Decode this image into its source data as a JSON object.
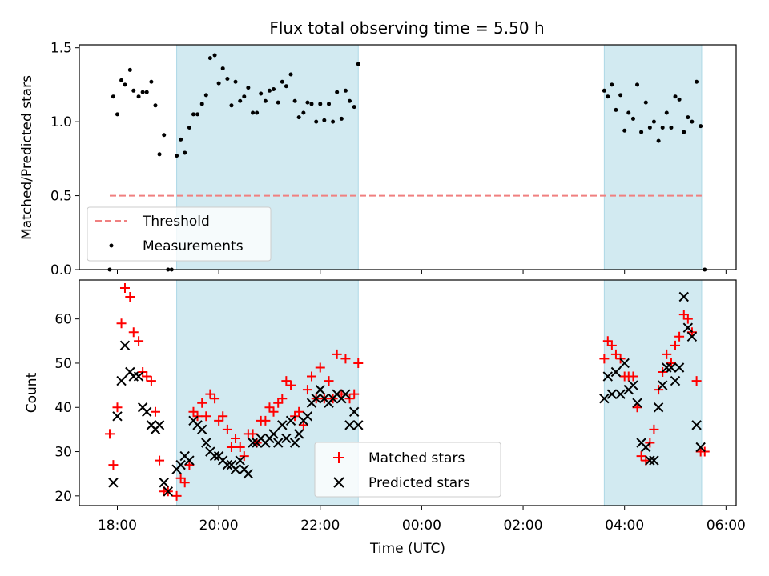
{
  "title": "Flux total observing time = 5.50 h",
  "chart_data": [
    {
      "type": "scatter",
      "panel": "top",
      "ylabel": "Matched/Predicted stars",
      "xlabel": "",
      "x_unit": "hours since 18:00 UTC",
      "xlim": [
        -0.75,
        12.2
      ],
      "ylim": [
        0.0,
        1.52
      ],
      "yticks": [
        0.0,
        0.5,
        1.0,
        1.5
      ],
      "ytick_labels": [
        "0.0",
        "0.5",
        "1.0",
        "1.5"
      ],
      "shaded_intervals": [
        [
          1.17,
          4.75
        ],
        [
          9.6,
          11.52
        ]
      ],
      "threshold": {
        "name": "Threshold",
        "value": 0.5,
        "x_range": [
          -0.15,
          11.52
        ],
        "color": "#f08080"
      },
      "series": [
        {
          "name": "Measurements",
          "color": "#000000",
          "points": [
            [
              -0.15,
              0.0
            ],
            [
              -0.08,
              1.17
            ],
            [
              0.0,
              1.05
            ],
            [
              0.08,
              1.28
            ],
            [
              0.15,
              1.25
            ],
            [
              0.25,
              1.35
            ],
            [
              0.32,
              1.21
            ],
            [
              0.42,
              1.17
            ],
            [
              0.5,
              1.2
            ],
            [
              0.58,
              1.2
            ],
            [
              0.67,
              1.27
            ],
            [
              0.75,
              1.11
            ],
            [
              0.83,
              0.78
            ],
            [
              0.92,
              0.91
            ],
            [
              1.0,
              0.0
            ],
            [
              1.07,
              0.0
            ],
            [
              1.17,
              0.77
            ],
            [
              1.25,
              0.88
            ],
            [
              1.33,
              0.79
            ],
            [
              1.42,
              0.96
            ],
            [
              1.5,
              1.05
            ],
            [
              1.58,
              1.05
            ],
            [
              1.67,
              1.12
            ],
            [
              1.75,
              1.18
            ],
            [
              1.83,
              1.43
            ],
            [
              1.92,
              1.45
            ],
            [
              2.0,
              1.26
            ],
            [
              2.08,
              1.36
            ],
            [
              2.17,
              1.29
            ],
            [
              2.25,
              1.11
            ],
            [
              2.33,
              1.27
            ],
            [
              2.42,
              1.14
            ],
            [
              2.5,
              1.17
            ],
            [
              2.58,
              1.23
            ],
            [
              2.67,
              1.06
            ],
            [
              2.75,
              1.06
            ],
            [
              2.83,
              1.19
            ],
            [
              2.92,
              1.14
            ],
            [
              3.0,
              1.21
            ],
            [
              3.08,
              1.22
            ],
            [
              3.17,
              1.13
            ],
            [
              3.25,
              1.27
            ],
            [
              3.33,
              1.24
            ],
            [
              3.42,
              1.32
            ],
            [
              3.5,
              1.14
            ],
            [
              3.58,
              1.03
            ],
            [
              3.67,
              1.06
            ],
            [
              3.75,
              1.13
            ],
            [
              3.83,
              1.12
            ],
            [
              3.92,
              1.0
            ],
            [
              4.0,
              1.12
            ],
            [
              4.08,
              1.01
            ],
            [
              4.17,
              1.12
            ],
            [
              4.25,
              1.0
            ],
            [
              4.33,
              1.2
            ],
            [
              4.42,
              1.02
            ],
            [
              4.5,
              1.21
            ],
            [
              4.58,
              1.14
            ],
            [
              4.67,
              1.1
            ],
            [
              4.75,
              1.39
            ],
            [
              9.6,
              1.21
            ],
            [
              9.67,
              1.17
            ],
            [
              9.75,
              1.25
            ],
            [
              9.83,
              1.08
            ],
            [
              9.92,
              1.18
            ],
            [
              10.0,
              0.94
            ],
            [
              10.08,
              1.06
            ],
            [
              10.17,
              1.02
            ],
            [
              10.25,
              1.25
            ],
            [
              10.33,
              0.93
            ],
            [
              10.42,
              1.13
            ],
            [
              10.5,
              0.96
            ],
            [
              10.58,
              1.0
            ],
            [
              10.67,
              0.87
            ],
            [
              10.75,
              0.96
            ],
            [
              10.83,
              1.06
            ],
            [
              10.92,
              0.96
            ],
            [
              11.0,
              1.17
            ],
            [
              11.08,
              1.15
            ],
            [
              11.17,
              0.93
            ],
            [
              11.25,
              1.03
            ],
            [
              11.33,
              1.0
            ],
            [
              11.42,
              1.27
            ],
            [
              11.5,
              0.97
            ],
            [
              11.58,
              0.0
            ]
          ]
        }
      ],
      "legend": {
        "placement": "lower-left",
        "entries": [
          "Threshold",
          "Measurements"
        ]
      }
    },
    {
      "type": "scatter",
      "panel": "bottom",
      "ylabel": "Count",
      "xlabel": "Time (UTC)",
      "x_unit": "hours since 18:00 UTC",
      "xlim": [
        -0.75,
        12.2
      ],
      "ylim": [
        17.8,
        68.8
      ],
      "yticks": [
        20,
        30,
        40,
        50,
        60
      ],
      "ytick_labels": [
        "20",
        "30",
        "40",
        "50",
        "60"
      ],
      "xticks": [
        0,
        2,
        4,
        6,
        8,
        10,
        12
      ],
      "xtick_labels": [
        "18:00",
        "20:00",
        "22:00",
        "00:00",
        "02:00",
        "04:00",
        "06:00"
      ],
      "shaded_intervals": [
        [
          1.17,
          4.75
        ],
        [
          9.6,
          11.52
        ]
      ],
      "series": [
        {
          "name": "Matched stars",
          "marker": "plus",
          "color": "#ff0000",
          "points": [
            [
              -0.15,
              34
            ],
            [
              -0.08,
              27
            ],
            [
              0.0,
              40
            ],
            [
              0.08,
              59
            ],
            [
              0.15,
              67
            ],
            [
              0.25,
              65
            ],
            [
              0.32,
              57
            ],
            [
              0.42,
              55
            ],
            [
              0.5,
              48
            ],
            [
              0.58,
              47
            ],
            [
              0.67,
              46
            ],
            [
              0.75,
              39
            ],
            [
              0.83,
              28
            ],
            [
              0.92,
              21
            ],
            [
              1.0,
              21
            ],
            [
              1.17,
              20
            ],
            [
              1.25,
              24
            ],
            [
              1.33,
              23
            ],
            [
              1.42,
              27
            ],
            [
              1.5,
              39
            ],
            [
              1.58,
              38
            ],
            [
              1.67,
              41
            ],
            [
              1.75,
              38
            ],
            [
              1.83,
              43
            ],
            [
              1.92,
              42
            ],
            [
              2.0,
              37
            ],
            [
              2.08,
              38
            ],
            [
              2.17,
              35
            ],
            [
              2.25,
              31
            ],
            [
              2.33,
              33
            ],
            [
              2.42,
              31
            ],
            [
              2.5,
              29
            ],
            [
              2.58,
              34
            ],
            [
              2.67,
              34
            ],
            [
              2.75,
              32
            ],
            [
              2.83,
              37
            ],
            [
              2.92,
              37
            ],
            [
              3.0,
              40
            ],
            [
              3.08,
              39
            ],
            [
              3.17,
              41
            ],
            [
              3.25,
              42
            ],
            [
              3.33,
              46
            ],
            [
              3.42,
              45
            ],
            [
              3.5,
              38
            ],
            [
              3.58,
              39
            ],
            [
              3.67,
              36
            ],
            [
              3.75,
              44
            ],
            [
              3.83,
              47
            ],
            [
              3.92,
              42
            ],
            [
              4.0,
              49
            ],
            [
              4.08,
              42
            ],
            [
              4.17,
              46
            ],
            [
              4.25,
              42
            ],
            [
              4.33,
              52
            ],
            [
              4.42,
              43
            ],
            [
              4.5,
              51
            ],
            [
              4.58,
              42
            ],
            [
              4.67,
              43
            ],
            [
              4.75,
              50
            ],
            [
              9.6,
              51
            ],
            [
              9.67,
              55
            ],
            [
              9.75,
              54
            ],
            [
              9.83,
              52
            ],
            [
              9.92,
              51
            ],
            [
              10.0,
              47
            ],
            [
              10.08,
              47
            ],
            [
              10.17,
              47
            ],
            [
              10.25,
              40
            ],
            [
              10.33,
              29
            ],
            [
              10.42,
              28
            ],
            [
              10.5,
              32
            ],
            [
              10.58,
              35
            ],
            [
              10.67,
              44
            ],
            [
              10.75,
              48
            ],
            [
              10.83,
              52
            ],
            [
              10.92,
              50
            ],
            [
              11.0,
              54
            ],
            [
              11.08,
              56
            ],
            [
              11.17,
              61
            ],
            [
              11.25,
              60
            ],
            [
              11.33,
              57
            ],
            [
              11.42,
              46
            ],
            [
              11.5,
              30
            ],
            [
              11.58,
              30
            ]
          ]
        },
        {
          "name": "Predicted stars",
          "marker": "x",
          "color": "#000000",
          "points": [
            [
              -0.08,
              23
            ],
            [
              0.0,
              38
            ],
            [
              0.08,
              46
            ],
            [
              0.15,
              54
            ],
            [
              0.25,
              48
            ],
            [
              0.32,
              47
            ],
            [
              0.42,
              47
            ],
            [
              0.5,
              40
            ],
            [
              0.58,
              39
            ],
            [
              0.67,
              36
            ],
            [
              0.75,
              35
            ],
            [
              0.83,
              36
            ],
            [
              0.92,
              23
            ],
            [
              1.0,
              21
            ],
            [
              1.17,
              26
            ],
            [
              1.25,
              27
            ],
            [
              1.33,
              29
            ],
            [
              1.42,
              28
            ],
            [
              1.5,
              37
            ],
            [
              1.58,
              36
            ],
            [
              1.67,
              35
            ],
            [
              1.75,
              32
            ],
            [
              1.83,
              30
            ],
            [
              1.92,
              29
            ],
            [
              2.0,
              29
            ],
            [
              2.08,
              28
            ],
            [
              2.17,
              27
            ],
            [
              2.25,
              27
            ],
            [
              2.33,
              26
            ],
            [
              2.42,
              28
            ],
            [
              2.5,
              26
            ],
            [
              2.58,
              25
            ],
            [
              2.67,
              32
            ],
            [
              2.75,
              32
            ],
            [
              2.83,
              33
            ],
            [
              2.92,
              32
            ],
            [
              3.0,
              33
            ],
            [
              3.08,
              34
            ],
            [
              3.17,
              32
            ],
            [
              3.25,
              36
            ],
            [
              3.33,
              33
            ],
            [
              3.42,
              37
            ],
            [
              3.5,
              32
            ],
            [
              3.58,
              34
            ],
            [
              3.67,
              37
            ],
            [
              3.75,
              38
            ],
            [
              3.83,
              41
            ],
            [
              3.92,
              42
            ],
            [
              4.0,
              44
            ],
            [
              4.08,
              42
            ],
            [
              4.17,
              41
            ],
            [
              4.25,
              42
            ],
            [
              4.33,
              43
            ],
            [
              4.42,
              42
            ],
            [
              4.5,
              43
            ],
            [
              4.58,
              36
            ],
            [
              4.67,
              39
            ],
            [
              4.75,
              36
            ],
            [
              9.6,
              42
            ],
            [
              9.67,
              47
            ],
            [
              9.75,
              43
            ],
            [
              9.83,
              48
            ],
            [
              9.92,
              43
            ],
            [
              10.0,
              50
            ],
            [
              10.08,
              44
            ],
            [
              10.17,
              45
            ],
            [
              10.25,
              41
            ],
            [
              10.33,
              32
            ],
            [
              10.42,
              31
            ],
            [
              10.5,
              28
            ],
            [
              10.58,
              28
            ],
            [
              10.67,
              40
            ],
            [
              10.75,
              45
            ],
            [
              10.83,
              49
            ],
            [
              10.92,
              49
            ],
            [
              11.0,
              46
            ],
            [
              11.08,
              49
            ],
            [
              11.17,
              65
            ],
            [
              11.25,
              58
            ],
            [
              11.33,
              56
            ],
            [
              11.42,
              36
            ],
            [
              11.5,
              31
            ]
          ]
        }
      ],
      "legend": {
        "placement": "lower-center",
        "entries": [
          "Matched stars",
          "Predicted stars"
        ]
      }
    }
  ]
}
